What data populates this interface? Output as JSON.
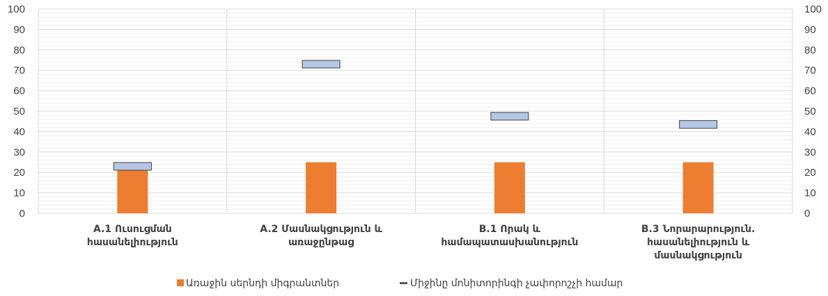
{
  "chart_data": {
    "type": "bar",
    "categories": [
      [
        "A.1 Ուսուցման",
        "հասանելիություն"
      ],
      [
        "A.2 Մասնակցություն և",
        "առաջընթաց"
      ],
      [
        "B.1 Որակ և",
        "համապատասխանություն"
      ],
      [
        "B.3 Նորարարություն.",
        "հասանելիություն և",
        "մասնակցություն"
      ]
    ],
    "series": [
      {
        "name": "Առաջին սերնդի միգրանտներ",
        "kind": "bar",
        "color": "#ED7D31",
        "values": [
          25,
          25,
          25,
          25
        ]
      },
      {
        "name": "Միջինը մոնիտորինգի չափորոշչի համար",
        "kind": "marker",
        "color": "#B4C7E7",
        "values": [
          23,
          73,
          47.5,
          43.5
        ]
      }
    ],
    "ylim": [
      0,
      100
    ],
    "yticks": [
      0,
      10,
      20,
      30,
      40,
      50,
      60,
      70,
      80,
      90,
      100
    ],
    "y_axis_left": true,
    "y_axis_right": true,
    "grid": true,
    "legend_position": "bottom"
  }
}
